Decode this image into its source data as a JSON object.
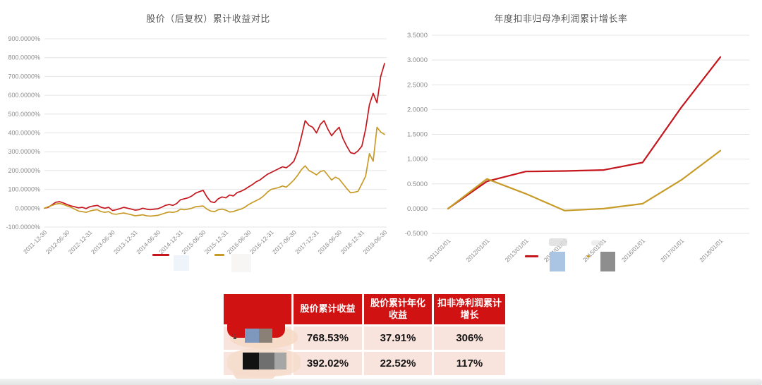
{
  "chart_data": [
    {
      "type": "line",
      "title": "股价（后复权）累计收益对比",
      "ylabel": "",
      "xlabel": "",
      "ylim": [
        -100,
        900
      ],
      "grid": true,
      "legend_labels_redacted": true,
      "y_tick_labels": [
        "900.0000%",
        "800.0000%",
        "700.0000%",
        "600.0000%",
        "500.0000%",
        "400.0000%",
        "300.0000%",
        "200.0000%",
        "100.0000%",
        "0.0000%",
        "-100.0000%"
      ],
      "x_tick_labels": [
        "2011-12-30",
        "2012-06-30",
        "2012-12-31",
        "2013-06-30",
        "2013-12-31",
        "2014-06-30",
        "2014-12-31",
        "2015-06-30",
        "2015-12-31",
        "2016-06-30",
        "2016-12-31",
        "2017-06-30",
        "2017-12-31",
        "2018-06-30",
        "2018-12-31",
        "2019-06-30"
      ],
      "x": [
        "2011-12",
        "2012-01",
        "2012-02",
        "2012-03",
        "2012-04",
        "2012-05",
        "2012-06",
        "2012-07",
        "2012-08",
        "2012-09",
        "2012-10",
        "2012-11",
        "2012-12",
        "2013-01",
        "2013-02",
        "2013-03",
        "2013-04",
        "2013-05",
        "2013-06",
        "2013-07",
        "2013-08",
        "2013-09",
        "2013-10",
        "2013-11",
        "2013-12",
        "2014-01",
        "2014-02",
        "2014-03",
        "2014-04",
        "2014-05",
        "2014-06",
        "2014-07",
        "2014-08",
        "2014-09",
        "2014-10",
        "2014-11",
        "2014-12",
        "2015-01",
        "2015-02",
        "2015-03",
        "2015-04",
        "2015-05",
        "2015-06",
        "2015-07",
        "2015-08",
        "2015-09",
        "2015-10",
        "2015-11",
        "2015-12",
        "2016-01",
        "2016-02",
        "2016-03",
        "2016-04",
        "2016-05",
        "2016-06",
        "2016-07",
        "2016-08",
        "2016-09",
        "2016-10",
        "2016-11",
        "2016-12",
        "2017-01",
        "2017-02",
        "2017-03",
        "2017-04",
        "2017-05",
        "2017-06",
        "2017-07",
        "2017-08",
        "2017-09",
        "2017-10",
        "2017-11",
        "2017-12",
        "2018-01",
        "2018-02",
        "2018-03",
        "2018-04",
        "2018-05",
        "2018-06",
        "2018-07",
        "2018-08",
        "2018-09",
        "2018-10",
        "2018-11",
        "2018-12",
        "2019-01",
        "2019-02",
        "2019-03",
        "2019-04",
        "2019-05",
        "2019-06"
      ],
      "series": [
        {
          "name": "series-1 (label redacted)",
          "color": "#c5161d",
          "values": [
            0,
            5,
            18,
            32,
            35,
            28,
            20,
            12,
            8,
            2,
            5,
            -2,
            8,
            12,
            15,
            5,
            0,
            5,
            -12,
            -8,
            -2,
            5,
            0,
            -5,
            -10,
            -8,
            0,
            -5,
            -8,
            -5,
            -3,
            5,
            15,
            20,
            15,
            25,
            45,
            50,
            55,
            65,
            80,
            88,
            95,
            60,
            35,
            30,
            50,
            60,
            55,
            70,
            65,
            83,
            90,
            100,
            113,
            125,
            140,
            150,
            165,
            180,
            190,
            200,
            210,
            220,
            215,
            230,
            250,
            300,
            380,
            465,
            440,
            430,
            400,
            445,
            465,
            420,
            385,
            410,
            430,
            370,
            330,
            295,
            290,
            305,
            330,
            420,
            550,
            610,
            560,
            700,
            768.53
          ]
        },
        {
          "name": "series-2 (label redacted)",
          "color": "#c79b27",
          "values": [
            0,
            8,
            15,
            22,
            25,
            20,
            12,
            5,
            -5,
            -15,
            -18,
            -22,
            -15,
            -10,
            -8,
            -18,
            -22,
            -18,
            -30,
            -32,
            -28,
            -25,
            -30,
            -35,
            -40,
            -38,
            -35,
            -40,
            -42,
            -40,
            -38,
            -32,
            -25,
            -20,
            -22,
            -18,
            -5,
            -8,
            -5,
            0,
            8,
            10,
            12,
            -5,
            -15,
            -18,
            -8,
            -5,
            -10,
            -20,
            -18,
            -10,
            -5,
            5,
            19,
            30,
            40,
            50,
            65,
            85,
            100,
            105,
            110,
            118,
            112,
            130,
            150,
            175,
            205,
            225,
            200,
            190,
            177,
            195,
            200,
            175,
            150,
            165,
            155,
            130,
            105,
            82,
            85,
            90,
            130,
            170,
            290,
            250,
            430,
            405,
            392.02
          ]
        }
      ]
    },
    {
      "type": "line",
      "title": "年度扣非归母净利润累计增长率",
      "ylabel": "",
      "xlabel": "",
      "ylim": [
        -0.5,
        3.5
      ],
      "grid": true,
      "legend_labels_redacted": true,
      "y_tick_labels": [
        "3.5000",
        "3.0000",
        "2.5000",
        "2.0000",
        "1.5000",
        "1.0000",
        "0.5000",
        "0.0000",
        "-0.5000"
      ],
      "x_tick_labels": [
        "2011/01/01",
        "2012/01/01",
        "2013/01/01",
        "2014/01/01",
        "2015/01/01",
        "2016/01/01",
        "2017/01/01",
        "2018/01/01"
      ],
      "x": [
        "2011/01/01",
        "2012/01/01",
        "2013/01/01",
        "2014/01/01",
        "2015/01/01",
        "2016/01/01",
        "2017/01/01",
        "2018/01/01"
      ],
      "series": [
        {
          "name": "series-1 (label redacted)",
          "color": "#c5161d",
          "values": [
            0,
            0.55,
            0.75,
            0.76,
            0.78,
            0.93,
            2.05,
            3.06
          ]
        },
        {
          "name": "series-2 (label redacted)",
          "color": "#c79b27",
          "values": [
            0,
            0.6,
            0.3,
            -0.04,
            0.0,
            0.1,
            0.58,
            1.17
          ]
        }
      ]
    }
  ],
  "legends": {
    "left": {
      "series1_color": "#c5161d",
      "series2_color": "#c79b27",
      "labels_redacted": true
    },
    "right": {
      "series1_color": "#c5161d",
      "series2_color": "#c79b27",
      "labels_redacted": true,
      "redaction_block_colors": [
        "#a9c5e3",
        "#8e8e8e"
      ]
    }
  },
  "table": {
    "header_color": "#d01212",
    "row_bg_color": "#f9e3dd",
    "headers": [
      "",
      "股价累计收益",
      "股价累计年化收益",
      "扣非净利润累计增长"
    ],
    "rows": [
      {
        "name_redacted": true,
        "cells": [
          "768.53%",
          "37.91%",
          "306%"
        ]
      },
      {
        "name_redacted": true,
        "cells": [
          "392.02%",
          "22.52%",
          "117%"
        ]
      }
    ]
  }
}
